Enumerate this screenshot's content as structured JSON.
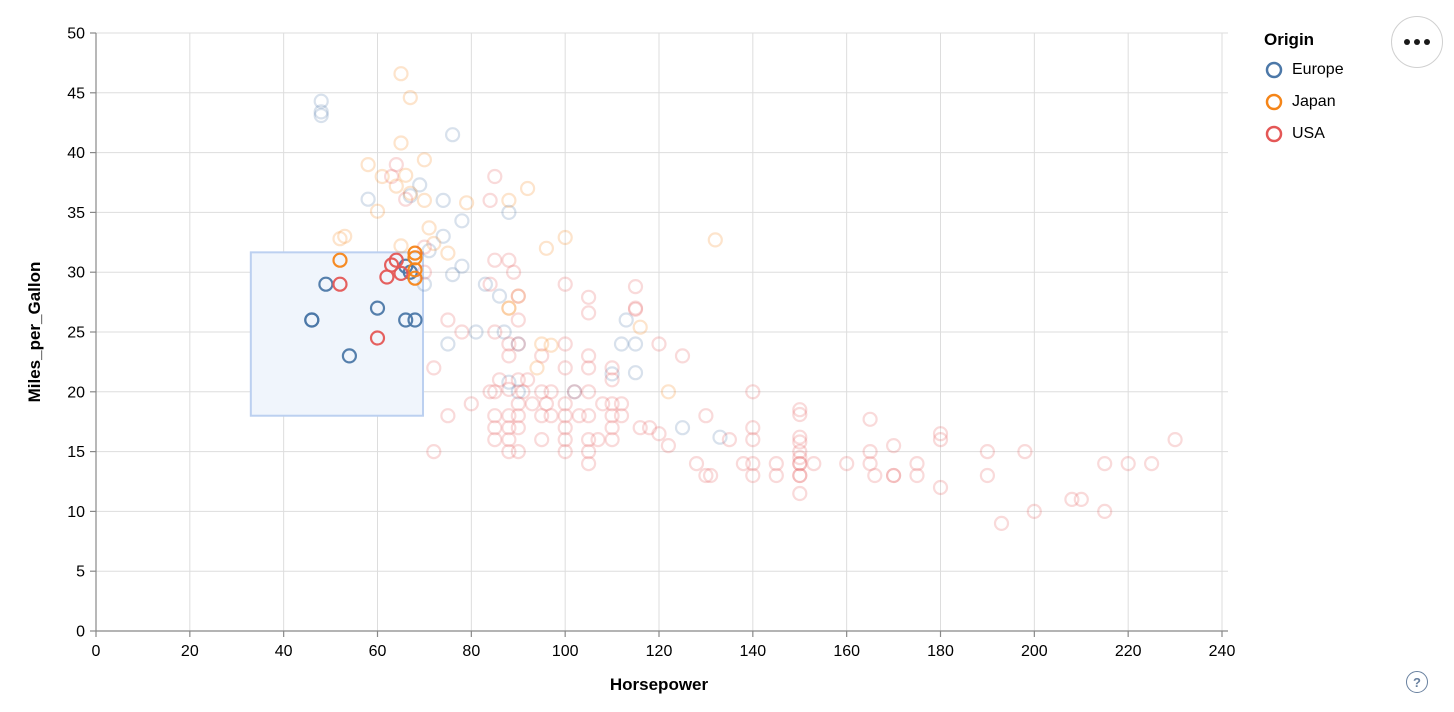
{
  "controls": {
    "menu_button": "options-menu",
    "help_label": "?"
  },
  "chart_data": {
    "type": "scatter",
    "xlabel": "Horsepower",
    "ylabel": "Miles_per_Gallon",
    "xlim": [
      0,
      240
    ],
    "ylim": [
      0,
      50
    ],
    "xticks": [
      0,
      20,
      40,
      60,
      80,
      100,
      120,
      140,
      160,
      180,
      200,
      220,
      240
    ],
    "yticks": [
      0,
      5,
      10,
      15,
      20,
      25,
      30,
      35,
      40,
      45,
      50
    ],
    "grid": true,
    "point_shape": "open-circle",
    "unselected_opacity": 0.22,
    "selected_opacity": 0.95,
    "brush": {
      "x": [
        33,
        69.7
      ],
      "y": [
        18,
        31.66
      ],
      "fill": "#f0f5fc",
      "stroke": "#bcd0f0"
    },
    "legend": {
      "title": "Origin",
      "position": "top-right",
      "entries": [
        {
          "label": "Europe",
          "color": "#4c78a8"
        },
        {
          "label": "Japan",
          "color": "#f58518"
        },
        {
          "label": "USA",
          "color": "#e45756"
        }
      ]
    },
    "series": [
      {
        "name": "Europe",
        "color": "#4c78a8",
        "points": [
          [
            48,
            44.3
          ],
          [
            48,
            43.4
          ],
          [
            48,
            43.1
          ],
          [
            76,
            41.5
          ],
          [
            69,
            37.3
          ],
          [
            74,
            36
          ],
          [
            67,
            36.4
          ],
          [
            58,
            36.1
          ],
          [
            88,
            35
          ],
          [
            78,
            34.3
          ],
          [
            74,
            33
          ],
          [
            71,
            31.8
          ],
          [
            78,
            30.5
          ],
          [
            76,
            29.8
          ],
          [
            70,
            29
          ],
          [
            83,
            29
          ],
          [
            86,
            28
          ],
          [
            87,
            25
          ],
          [
            90,
            24
          ],
          [
            75,
            24
          ],
          [
            81,
            25
          ],
          [
            112,
            24
          ],
          [
            115,
            24
          ],
          [
            113,
            26
          ],
          [
            110,
            21.5
          ],
          [
            115,
            21.6
          ],
          [
            102,
            20
          ],
          [
            88,
            20.8
          ],
          [
            90,
            20
          ],
          [
            125,
            17
          ],
          [
            133,
            16.2
          ],
          [
            46,
            26
          ],
          [
            46,
            26
          ],
          [
            49,
            29
          ],
          [
            54,
            23
          ],
          [
            60,
            27
          ],
          [
            66,
            26
          ],
          [
            68,
            26
          ],
          [
            67,
            30
          ],
          [
            66,
            30.5
          ]
        ]
      },
      {
        "name": "Japan",
        "color": "#f58518",
        "points": [
          [
            65,
            46.6
          ],
          [
            67,
            44.6
          ],
          [
            65,
            40.8
          ],
          [
            70,
            39.4
          ],
          [
            58,
            39
          ],
          [
            61,
            38
          ],
          [
            66,
            38.1
          ],
          [
            64,
            37.2
          ],
          [
            67,
            36.6
          ],
          [
            70,
            36
          ],
          [
            60,
            35.1
          ],
          [
            53,
            33
          ],
          [
            52,
            32.8
          ],
          [
            65,
            32.2
          ],
          [
            71,
            33.7
          ],
          [
            72,
            32.4
          ],
          [
            96,
            32
          ],
          [
            100,
            32.9
          ],
          [
            132,
            32.7
          ],
          [
            75,
            31.6
          ],
          [
            92,
            37
          ],
          [
            88,
            36
          ],
          [
            79,
            35.8
          ],
          [
            90,
            28
          ],
          [
            88,
            27
          ],
          [
            88,
            27
          ],
          [
            95,
            24
          ],
          [
            94,
            22
          ],
          [
            97,
            23.9
          ],
          [
            116,
            25.4
          ],
          [
            122,
            20
          ],
          [
            52,
            31
          ],
          [
            68,
            31.6
          ],
          [
            68,
            31.2
          ],
          [
            68,
            30.2
          ],
          [
            68,
            29.5
          ]
        ]
      },
      {
        "name": "USA",
        "color": "#e45756",
        "points": [
          [
            52,
            29
          ],
          [
            60,
            24.5
          ],
          [
            62,
            29.6
          ],
          [
            63,
            30.6
          ],
          [
            64,
            31
          ],
          [
            65,
            29.9
          ],
          [
            64,
            39
          ],
          [
            63,
            38
          ],
          [
            66,
            36.1
          ],
          [
            85,
            38
          ],
          [
            84,
            36
          ],
          [
            70,
            32.1
          ],
          [
            70,
            30
          ],
          [
            85,
            31
          ],
          [
            88,
            31
          ],
          [
            89,
            30
          ],
          [
            84,
            29
          ],
          [
            90,
            28
          ],
          [
            100,
            29
          ],
          [
            105,
            27.9
          ],
          [
            105,
            26.6
          ],
          [
            115,
            28.8
          ],
          [
            115,
            26.9
          ],
          [
            115,
            27
          ],
          [
            72,
            22
          ],
          [
            75,
            26
          ],
          [
            78,
            25
          ],
          [
            85,
            25
          ],
          [
            88,
            24
          ],
          [
            88,
            23
          ],
          [
            90,
            26
          ],
          [
            90,
            24
          ],
          [
            95,
            23
          ],
          [
            100,
            22
          ],
          [
            100,
            24
          ],
          [
            105,
            22
          ],
          [
            105,
            23
          ],
          [
            110,
            22
          ],
          [
            120,
            24
          ],
          [
            125,
            23
          ],
          [
            72,
            15
          ],
          [
            75,
            18
          ],
          [
            80,
            19
          ],
          [
            84,
            20
          ],
          [
            85,
            16
          ],
          [
            85,
            17
          ],
          [
            85,
            18
          ],
          [
            85,
            20
          ],
          [
            86,
            21
          ],
          [
            88,
            15
          ],
          [
            88,
            16
          ],
          [
            88,
            17
          ],
          [
            88,
            18
          ],
          [
            88,
            20.2
          ],
          [
            90,
            15
          ],
          [
            90,
            17
          ],
          [
            90,
            18
          ],
          [
            90,
            19
          ],
          [
            90,
            21
          ],
          [
            91,
            20
          ],
          [
            92,
            21
          ],
          [
            93,
            19
          ],
          [
            95,
            16
          ],
          [
            95,
            18
          ],
          [
            95,
            20
          ],
          [
            96,
            19
          ],
          [
            97,
            18
          ],
          [
            97,
            20
          ],
          [
            100,
            15
          ],
          [
            100,
            16
          ],
          [
            100,
            17
          ],
          [
            100,
            18
          ],
          [
            100,
            19
          ],
          [
            102,
            20
          ],
          [
            103,
            18
          ],
          [
            105,
            14
          ],
          [
            105,
            15
          ],
          [
            105,
            16
          ],
          [
            105,
            18
          ],
          [
            105,
            20
          ],
          [
            107,
            16
          ],
          [
            108,
            19
          ],
          [
            110,
            16
          ],
          [
            110,
            17
          ],
          [
            110,
            18
          ],
          [
            110,
            19
          ],
          [
            110,
            21
          ],
          [
            112,
            18
          ],
          [
            112,
            19
          ],
          [
            116,
            17
          ],
          [
            118,
            17
          ],
          [
            120,
            16.5
          ],
          [
            122,
            15.5
          ],
          [
            128,
            14
          ],
          [
            130,
            13
          ],
          [
            131,
            13
          ],
          [
            130,
            18
          ],
          [
            135,
            16
          ],
          [
            138,
            14
          ],
          [
            140,
            13
          ],
          [
            140,
            14
          ],
          [
            140,
            16
          ],
          [
            140,
            17
          ],
          [
            140,
            20
          ],
          [
            145,
            13
          ],
          [
            145,
            14
          ],
          [
            150,
            11.5
          ],
          [
            150,
            13
          ],
          [
            150,
            13
          ],
          [
            150,
            14
          ],
          [
            150,
            14
          ],
          [
            150,
            14.5
          ],
          [
            150,
            15
          ],
          [
            150,
            15.8
          ],
          [
            150,
            16.2
          ],
          [
            150,
            18.1
          ],
          [
            150,
            18.5
          ],
          [
            153,
            14
          ],
          [
            160,
            14
          ],
          [
            165,
            14
          ],
          [
            165,
            15
          ],
          [
            165,
            17.7
          ],
          [
            166,
            13
          ],
          [
            170,
            13
          ],
          [
            170,
            13
          ],
          [
            170,
            15.5
          ],
          [
            175,
            13
          ],
          [
            175,
            14
          ],
          [
            180,
            12
          ],
          [
            180,
            16
          ],
          [
            180,
            16.5
          ],
          [
            190,
            13
          ],
          [
            190,
            15
          ],
          [
            193,
            9
          ],
          [
            198,
            15
          ],
          [
            200,
            10
          ],
          [
            208,
            11
          ],
          [
            210,
            11
          ],
          [
            215,
            10
          ],
          [
            215,
            14
          ],
          [
            220,
            14
          ],
          [
            225,
            14
          ],
          [
            230,
            16
          ]
        ]
      }
    ]
  }
}
